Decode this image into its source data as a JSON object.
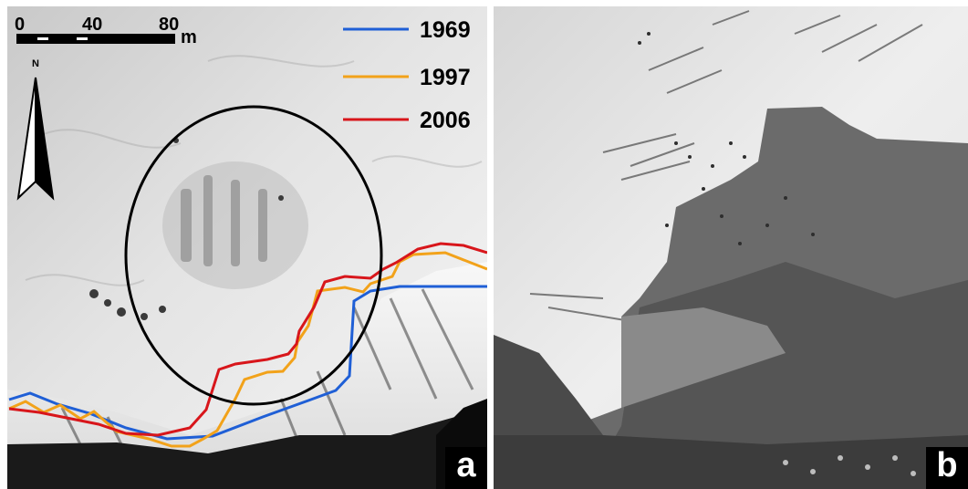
{
  "panel_a": {
    "label": "a",
    "scale_bar": {
      "ticks": [
        "0",
        "40",
        "80"
      ],
      "unit": "m"
    },
    "north_arrow": {
      "label": "N",
      "icon": "north-arrow-icon"
    },
    "legend": [
      {
        "year": "1969",
        "color": "#1f5fd6"
      },
      {
        "year": "1997",
        "color": "#f2a21a"
      },
      {
        "year": "2006",
        "color": "#d8161b"
      }
    ],
    "highlight": {
      "shape": "ellipse",
      "color": "#000000"
    }
  },
  "panel_b": {
    "label": "b"
  }
}
